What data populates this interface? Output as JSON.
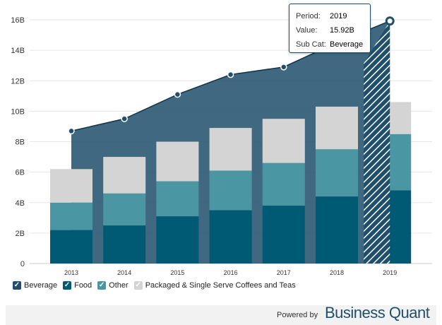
{
  "chart_data": {
    "type": "bar",
    "stacked": true,
    "categories": [
      "2013",
      "2014",
      "2015",
      "2016",
      "2017",
      "2018",
      "2019"
    ],
    "series": [
      {
        "name": "Food",
        "color": "#005a73",
        "values": [
          2.2,
          2.5,
          3.1,
          3.5,
          3.8,
          4.4,
          4.8
        ]
      },
      {
        "name": "Other",
        "color": "#4a96a3",
        "values": [
          1.8,
          2.1,
          2.3,
          2.6,
          2.8,
          3.1,
          3.7
        ]
      },
      {
        "name": "Packaged & Single Serve Coffees and Teas",
        "color": "#d4d4d4",
        "values": [
          2.2,
          2.4,
          2.6,
          2.8,
          2.9,
          2.8,
          2.1
        ]
      }
    ],
    "line_series": {
      "name": "Beverage",
      "type": "area",
      "color": "#1f4f6b",
      "values": [
        8.7,
        9.5,
        11.1,
        12.4,
        12.9,
        14.5,
        15.92
      ]
    },
    "y_ticks": [
      "0",
      "2B",
      "4B",
      "6B",
      "8B",
      "10B",
      "12B",
      "14B",
      "16B"
    ],
    "ylim": [
      0,
      17
    ],
    "grid": true,
    "highlighted_category": "2019",
    "legend_position": "bottom-left"
  },
  "tooltip": {
    "period_label": "Period:",
    "period_value": "2019",
    "value_label": "Value:",
    "value_value": "15.92B",
    "subcat_label": "Sub Cat:",
    "subcat_value": "Beverage"
  },
  "legend": [
    {
      "label": "Beverage",
      "color": "#1f4f6b",
      "checked": true
    },
    {
      "label": "Food",
      "color": "#005a73",
      "checked": true
    },
    {
      "label": "Other",
      "color": "#4a96a3",
      "checked": true
    },
    {
      "label": "Packaged & Single Serve Coffees and Teas",
      "color": "#d4d4d4",
      "checked": true
    }
  ],
  "footer": {
    "powered_by": "Powered by",
    "brand": "Business Quant"
  }
}
